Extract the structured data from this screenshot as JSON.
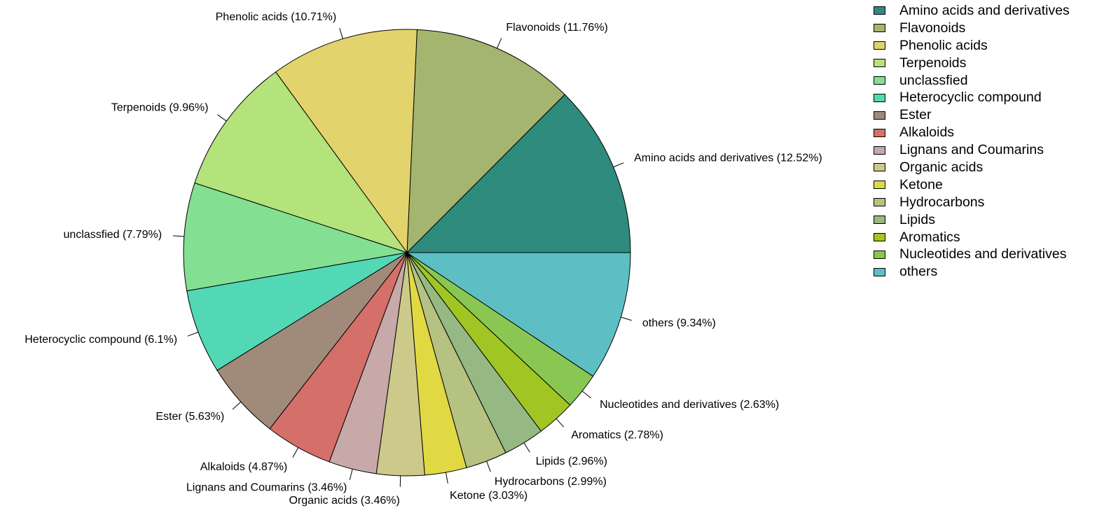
{
  "chart_data": {
    "type": "pie",
    "title": "",
    "legend": "right",
    "slices": [
      {
        "label": "Amino acids and derivatives",
        "value": 12.52,
        "text": "Amino acids and derivatives (12.52%)",
        "color": "#2e8b7d"
      },
      {
        "label": "Flavonoids",
        "value": 11.76,
        "text": "Flavonoids (11.76%)",
        "color": "#a4b56f"
      },
      {
        "label": "Phenolic acids",
        "value": 10.71,
        "text": "Phenolic acids (10.71%)",
        "color": "#e2d36c"
      },
      {
        "label": "Terpenoids",
        "value": 9.96,
        "text": "Terpenoids (9.96%)",
        "color": "#b4e27b"
      },
      {
        "label": "unclassfied",
        "value": 7.79,
        "text": "unclassfied (7.79%)",
        "color": "#83e093"
      },
      {
        "label": "Heterocyclic compound",
        "value": 6.1,
        "text": "Heterocyclic compound (6.1%)",
        "color": "#52d8b5"
      },
      {
        "label": "Ester",
        "value": 5.63,
        "text": "Ester (5.63%)",
        "color": "#a08b7b"
      },
      {
        "label": "Alkaloids",
        "value": 4.87,
        "text": "Alkaloids (4.87%)",
        "color": "#d56f6a"
      },
      {
        "label": "Lignans and Coumarins",
        "value": 3.46,
        "text": "Lignans and Coumarins (3.46%)",
        "color": "#c6a9a8"
      },
      {
        "label": "Organic acids",
        "value": 3.46,
        "text": "Organic acids (3.46%)",
        "color": "#ccc98b"
      },
      {
        "label": "Ketone",
        "value": 3.03,
        "text": "Ketone (3.03%)",
        "color": "#e0d944"
      },
      {
        "label": "Hydrocarbons",
        "value": 2.99,
        "text": "Hydrocarbons (2.99%)",
        "color": "#b5c281"
      },
      {
        "label": "Lipids",
        "value": 2.96,
        "text": "Lipids (2.96%)",
        "color": "#96b882"
      },
      {
        "label": "Aromatics",
        "value": 2.78,
        "text": "Aromatics (2.78%)",
        "color": "#a1c624"
      },
      {
        "label": "Nucleotides and derivatives",
        "value": 2.63,
        "text": "Nucleotides and derivatives (2.63%)",
        "color": "#89c752"
      },
      {
        "label": "others",
        "value": 9.34,
        "text": "others (9.34%)",
        "color": "#5dbfc4"
      }
    ]
  }
}
